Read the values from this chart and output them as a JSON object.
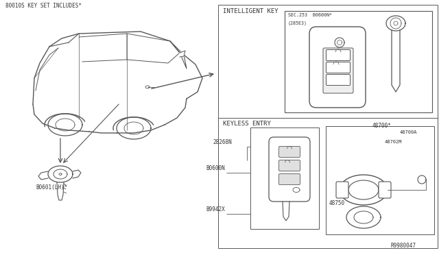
{
  "bg_color": "#ffffff",
  "line_color": "#555555",
  "text_color": "#333333",
  "heading": "80010S KEY SET INCLUDES*",
  "labels": {
    "intelligent_key": "INTELLIGENT KEY",
    "keyless_entry": "KEYLESS ENTRY",
    "b0601": "B0601(LH)*",
    "sec_ref_1": "SEC.253  B0600N*",
    "sec_ref_2": "(285E3)",
    "b0600n": "B0600N",
    "b8268n": "28268N",
    "b9942x": "B9942X",
    "part_48700": "48700*",
    "part_48700a": "48700A",
    "part_48702m": "48702M",
    "part_48750": "48750",
    "diagram_ref": "R9980047"
  }
}
